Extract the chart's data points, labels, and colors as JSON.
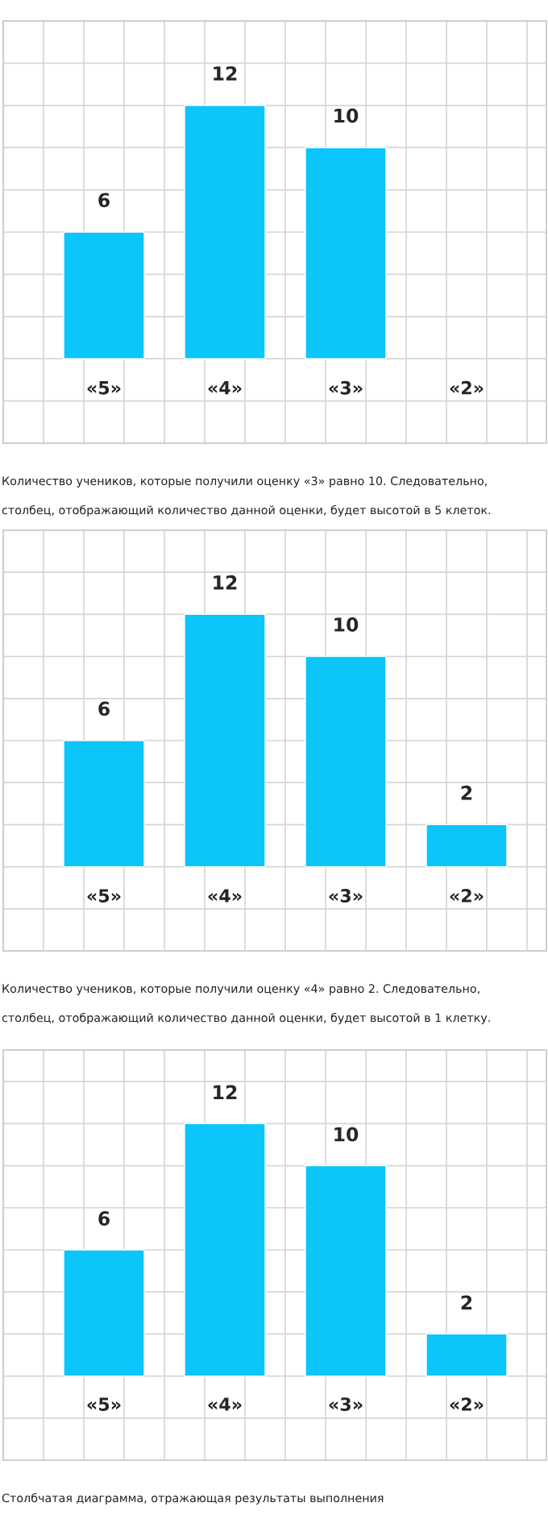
{
  "chart_data": [
    {
      "type": "bar",
      "categories": [
        "«5»",
        "«4»",
        "«3»",
        "«2»"
      ],
      "values": [
        6,
        12,
        10,
        null
      ],
      "color": "#0bc5fb",
      "data_labels": true,
      "ylim": [
        -4,
        16
      ],
      "yticks": [
        {
          "value": -4,
          "label": null
        },
        {
          "value": -2,
          "label": null
        },
        {
          "value": 0,
          "label": null
        },
        {
          "value": 2,
          "label": null
        },
        {
          "value": 4,
          "label": null
        },
        {
          "value": 6,
          "label": null
        },
        {
          "value": 8,
          "label": null
        },
        {
          "value": 10,
          "label": null
        },
        {
          "value": 12,
          "label": null
        },
        {
          "value": 14,
          "label": null
        },
        {
          "value": 16,
          "label": null
        }
      ],
      "grid": true,
      "tick_labels": false,
      "annotations": [
        "Количество учеников, которые получили оценку «3» равно 10. Следовательно,",
        "столбец, отображающий количество данной оценки, будет высотой в 5 клеток."
      ]
    },
    {
      "type": "bar",
      "categories": [
        "«5»",
        "«4»",
        "«3»",
        "«2»"
      ],
      "values": [
        6,
        12,
        10,
        2
      ],
      "color": "#0bc5fb",
      "data_labels": true,
      "ylim": [
        -4,
        16
      ],
      "yticks": [
        {
          "value": -4,
          "label": null
        },
        {
          "value": -2,
          "label": null
        },
        {
          "value": 0,
          "label": null
        },
        {
          "value": 2,
          "label": null
        },
        {
          "value": 4,
          "label": null
        },
        {
          "value": 6,
          "label": null
        },
        {
          "value": 8,
          "label": null
        },
        {
          "value": 10,
          "label": null
        },
        {
          "value": 12,
          "label": null
        },
        {
          "value": 14,
          "label": null
        },
        {
          "value": 16,
          "label": null
        }
      ],
      "grid": true,
      "tick_labels": false,
      "annotations": [
        "Количество учеников, которые получили оценку «4» равно 2. Следовательно,",
        "столбец, отображающий количество данной оценки, будет высотой в 1 клетку."
      ]
    },
    {
      "type": "bar",
      "categories": [
        "«5»",
        "«4»",
        "«3»",
        "«2»"
      ],
      "values": [
        6,
        12,
        10,
        2
      ],
      "color": "#0bc5fb",
      "data_labels": true,
      "ylim": [
        -4,
        15.5
      ],
      "yticks": [
        {
          "value": -4,
          "label": null
        },
        {
          "value": -2,
          "label": null
        },
        {
          "value": 0,
          "label": null
        },
        {
          "value": 2,
          "label": null
        },
        {
          "value": 4,
          "label": null
        },
        {
          "value": 6,
          "label": null
        },
        {
          "value": 8,
          "label": null
        },
        {
          "value": 10,
          "label": null
        },
        {
          "value": 12,
          "label": null
        },
        {
          "value": 14,
          "label": null
        }
      ],
      "grid": true,
      "tick_labels": false,
      "annotations": [
        "Столбчатая диаграмма, отражающая результаты выполнения"
      ]
    }
  ]
}
